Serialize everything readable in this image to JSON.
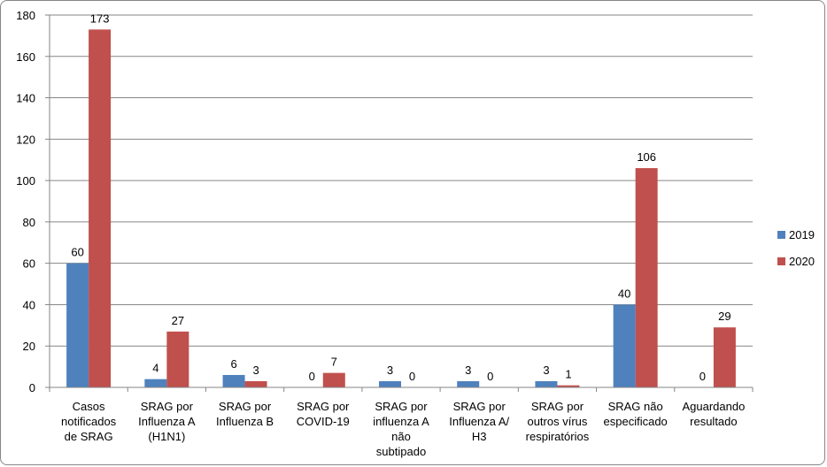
{
  "chart_data": {
    "type": "bar",
    "title": "",
    "xlabel": "",
    "ylabel": "",
    "ylim": [
      0,
      180
    ],
    "yticks": [
      0,
      20,
      40,
      60,
      80,
      100,
      120,
      140,
      160,
      180
    ],
    "grid": true,
    "legend_position": "right",
    "categories": [
      [
        "Casos",
        "notificados",
        "de SRAG"
      ],
      [
        "SRAG por",
        "Influenza A",
        "(H1N1)"
      ],
      [
        "SRAG por",
        "Influenza B"
      ],
      [
        "SRAG por",
        "COVID-19"
      ],
      [
        "SRAG por",
        "influenza A",
        "não",
        "subtipado"
      ],
      [
        "SRAG por",
        "Influenza A/",
        "H3"
      ],
      [
        "SRAG por",
        "outros vírus",
        "respiratórios"
      ],
      [
        "SRAG não",
        "especificado"
      ],
      [
        "Aguardando",
        "resultado"
      ]
    ],
    "series": [
      {
        "name": "2019",
        "color": "#4f81bd",
        "values": [
          60,
          4,
          6,
          0,
          3,
          3,
          3,
          40,
          0
        ]
      },
      {
        "name": "2020",
        "color": "#c0504d",
        "values": [
          173,
          27,
          3,
          7,
          0,
          0,
          1,
          106,
          29
        ]
      }
    ]
  }
}
